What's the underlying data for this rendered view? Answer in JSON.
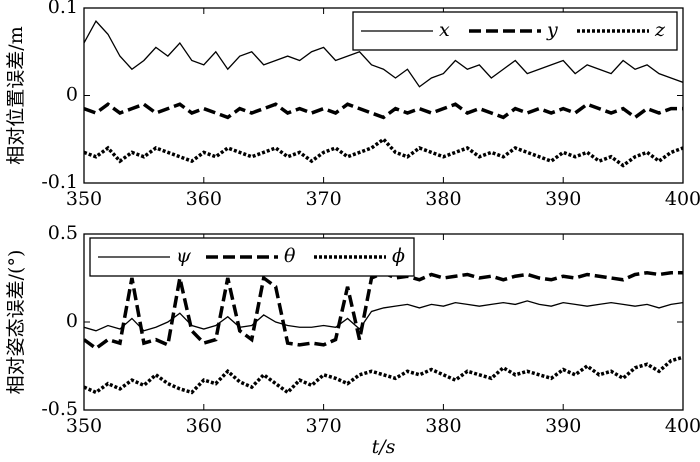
{
  "chart_data": [
    {
      "type": "line",
      "ylabel": "相对位置误差/m",
      "legend": "upper right",
      "x": [
        350,
        351,
        352,
        353,
        354,
        355,
        356,
        357,
        358,
        359,
        360,
        361,
        362,
        363,
        364,
        365,
        366,
        367,
        368,
        369,
        370,
        371,
        372,
        373,
        374,
        375,
        376,
        377,
        378,
        379,
        380,
        381,
        382,
        383,
        384,
        385,
        386,
        387,
        388,
        389,
        390,
        391,
        392,
        393,
        394,
        395,
        396,
        397,
        398,
        399,
        400
      ],
      "xlim": [
        350,
        400
      ],
      "xticks": [
        350,
        360,
        370,
        380,
        390,
        400
      ],
      "ylim": [
        -0.1,
        0.1
      ],
      "yticks": [
        -0.1,
        0,
        0.1
      ],
      "series": [
        {
          "name": "x",
          "color": "#000000",
          "style": "solid",
          "values": [
            0.06,
            0.085,
            0.07,
            0.045,
            0.03,
            0.04,
            0.055,
            0.045,
            0.06,
            0.04,
            0.035,
            0.05,
            0.03,
            0.045,
            0.05,
            0.035,
            0.04,
            0.045,
            0.04,
            0.05,
            0.055,
            0.04,
            0.045,
            0.05,
            0.035,
            0.03,
            0.02,
            0.03,
            0.01,
            0.02,
            0.025,
            0.04,
            0.03,
            0.035,
            0.02,
            0.03,
            0.04,
            0.025,
            0.03,
            0.035,
            0.04,
            0.025,
            0.035,
            0.03,
            0.025,
            0.04,
            0.03,
            0.035,
            0.025,
            0.02,
            0.015
          ]
        },
        {
          "name": "y",
          "color": "#000000",
          "style": "dashed",
          "values": [
            -0.015,
            -0.02,
            -0.01,
            -0.02,
            -0.015,
            -0.01,
            -0.02,
            -0.015,
            -0.01,
            -0.02,
            -0.015,
            -0.02,
            -0.025,
            -0.015,
            -0.02,
            -0.015,
            -0.01,
            -0.02,
            -0.015,
            -0.02,
            -0.015,
            -0.02,
            -0.01,
            -0.015,
            -0.02,
            -0.025,
            -0.015,
            -0.02,
            -0.015,
            -0.02,
            -0.015,
            -0.01,
            -0.02,
            -0.015,
            -0.02,
            -0.025,
            -0.015,
            -0.02,
            -0.015,
            -0.02,
            -0.015,
            -0.02,
            -0.01,
            -0.015,
            -0.02,
            -0.015,
            -0.025,
            -0.015,
            -0.02,
            -0.015,
            -0.015
          ]
        },
        {
          "name": "z",
          "color": "#000000",
          "style": "dotted",
          "values": [
            -0.065,
            -0.07,
            -0.06,
            -0.075,
            -0.065,
            -0.07,
            -0.06,
            -0.065,
            -0.07,
            -0.075,
            -0.065,
            -0.07,
            -0.06,
            -0.065,
            -0.07,
            -0.065,
            -0.06,
            -0.07,
            -0.065,
            -0.075,
            -0.065,
            -0.06,
            -0.07,
            -0.065,
            -0.06,
            -0.05,
            -0.065,
            -0.07,
            -0.06,
            -0.065,
            -0.07,
            -0.065,
            -0.06,
            -0.07,
            -0.065,
            -0.07,
            -0.06,
            -0.065,
            -0.07,
            -0.075,
            -0.065,
            -0.07,
            -0.065,
            -0.075,
            -0.07,
            -0.08,
            -0.07,
            -0.065,
            -0.075,
            -0.065,
            -0.06
          ]
        }
      ]
    },
    {
      "type": "line",
      "ylabel": "相对姿态误差/(°)",
      "xlabel": "t/s",
      "legend": "upper left",
      "x": [
        350,
        351,
        352,
        353,
        354,
        355,
        356,
        357,
        358,
        359,
        360,
        361,
        362,
        363,
        364,
        365,
        366,
        367,
        368,
        369,
        370,
        371,
        372,
        373,
        374,
        375,
        376,
        377,
        378,
        379,
        380,
        381,
        382,
        383,
        384,
        385,
        386,
        387,
        388,
        389,
        390,
        391,
        392,
        393,
        394,
        395,
        396,
        397,
        398,
        399,
        400
      ],
      "xlim": [
        350,
        400
      ],
      "xticks": [
        350,
        360,
        370,
        380,
        390,
        400
      ],
      "ylim": [
        -0.5,
        0.5
      ],
      "yticks": [
        -0.5,
        0,
        0.5
      ],
      "series": [
        {
          "name": "ψ",
          "color": "#000000",
          "style": "solid",
          "values": [
            -0.03,
            -0.05,
            -0.02,
            -0.04,
            0.02,
            -0.05,
            -0.03,
            0.0,
            0.05,
            -0.02,
            -0.04,
            -0.02,
            0.03,
            -0.03,
            -0.02,
            0.04,
            0.0,
            -0.02,
            -0.03,
            -0.03,
            -0.02,
            -0.03,
            0.02,
            -0.04,
            0.06,
            0.08,
            0.09,
            0.1,
            0.08,
            0.1,
            0.09,
            0.11,
            0.1,
            0.09,
            0.1,
            0.11,
            0.1,
            0.12,
            0.1,
            0.09,
            0.11,
            0.1,
            0.09,
            0.1,
            0.11,
            0.1,
            0.09,
            0.1,
            0.08,
            0.1,
            0.11
          ]
        },
        {
          "name": "θ",
          "color": "#000000",
          "style": "dashed",
          "values": [
            -0.1,
            -0.15,
            -0.1,
            -0.12,
            0.25,
            -0.12,
            -0.1,
            -0.13,
            0.25,
            -0.05,
            -0.12,
            -0.1,
            0.25,
            -0.05,
            -0.1,
            0.25,
            0.2,
            -0.12,
            -0.13,
            -0.12,
            -0.13,
            -0.1,
            0.2,
            -0.1,
            0.25,
            0.28,
            0.25,
            0.26,
            0.24,
            0.27,
            0.25,
            0.26,
            0.27,
            0.25,
            0.26,
            0.24,
            0.26,
            0.27,
            0.25,
            0.24,
            0.26,
            0.25,
            0.27,
            0.26,
            0.25,
            0.24,
            0.27,
            0.28,
            0.27,
            0.28,
            0.28
          ]
        },
        {
          "name": "ϕ",
          "color": "#000000",
          "style": "dotted",
          "values": [
            -0.37,
            -0.4,
            -0.35,
            -0.38,
            -0.33,
            -0.36,
            -0.3,
            -0.35,
            -0.38,
            -0.4,
            -0.33,
            -0.35,
            -0.28,
            -0.34,
            -0.37,
            -0.3,
            -0.35,
            -0.4,
            -0.33,
            -0.36,
            -0.3,
            -0.32,
            -0.35,
            -0.3,
            -0.28,
            -0.3,
            -0.32,
            -0.28,
            -0.3,
            -0.27,
            -0.3,
            -0.33,
            -0.28,
            -0.3,
            -0.32,
            -0.26,
            -0.3,
            -0.28,
            -0.3,
            -0.32,
            -0.27,
            -0.3,
            -0.25,
            -0.3,
            -0.28,
            -0.32,
            -0.26,
            -0.24,
            -0.28,
            -0.22,
            -0.2
          ]
        }
      ]
    }
  ]
}
